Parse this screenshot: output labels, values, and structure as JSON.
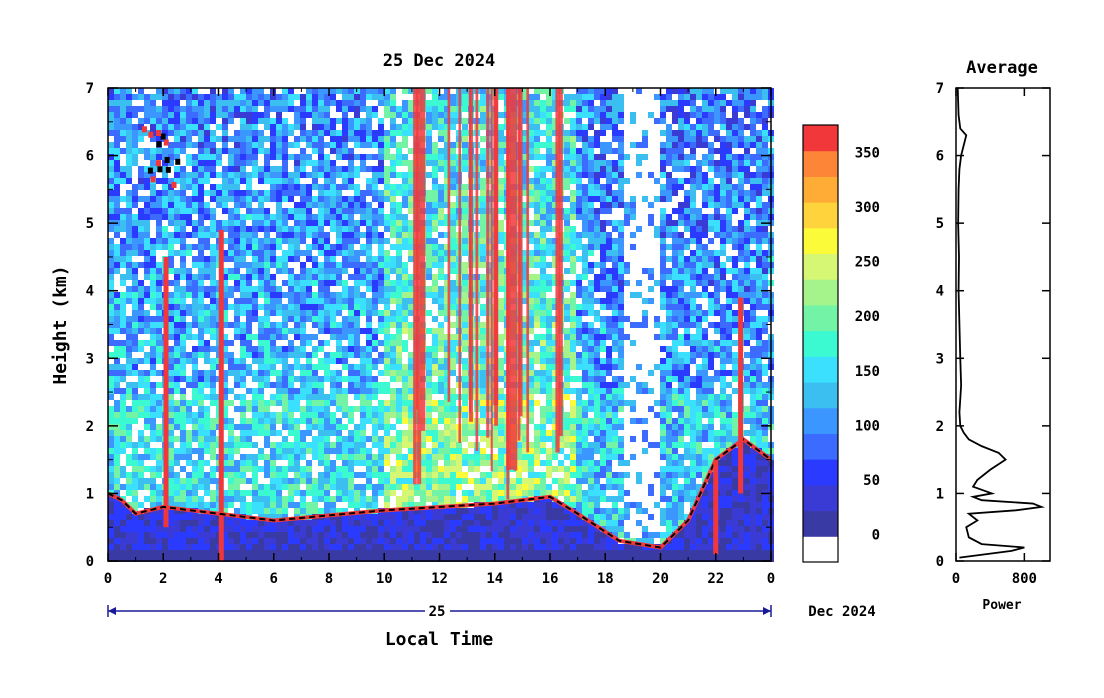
{
  "chart_data": [
    {
      "type": "heatmap",
      "title": "25 Dec 2024",
      "xlabel": "Local Time",
      "ylabel": "Height (km)",
      "x_ticks": [
        "0",
        "2",
        "4",
        "6",
        "8",
        "10",
        "12",
        "14",
        "16",
        "18",
        "20",
        "22",
        "0"
      ],
      "x_range_hours": [
        0,
        24
      ],
      "y_ticks": [
        "0",
        "1",
        "2",
        "3",
        "4",
        "5",
        "6",
        "7"
      ],
      "ylim": [
        0,
        7
      ],
      "date_bar": {
        "day_label": "25",
        "month_label": "Dec 2024"
      },
      "features": [
        {
          "kind": "vertical_streak",
          "x_hour": 2.1,
          "y_range": [
            0.5,
            4.5
          ]
        },
        {
          "kind": "vertical_streak",
          "x_hour": 4.1,
          "y_range": [
            0,
            4.9
          ]
        },
        {
          "kind": "cloud_top",
          "x_hours": [
            1.2,
            2.5
          ],
          "y_range": [
            5.6,
            6.6
          ]
        },
        {
          "kind": "boundary_layer",
          "points": [
            [
              0,
              1.0
            ],
            [
              0.5,
              0.9
            ],
            [
              1,
              0.7
            ],
            [
              2,
              0.8
            ],
            [
              3,
              0.75
            ],
            [
              6,
              0.6
            ],
            [
              10,
              0.75
            ],
            [
              12,
              0.8
            ],
            [
              14,
              0.85
            ],
            [
              16,
              0.95
            ],
            [
              17,
              0.7
            ],
            [
              18.5,
              0.3
            ],
            [
              20,
              0.2
            ],
            [
              21,
              0.6
            ],
            [
              22,
              1.5
            ],
            [
              23,
              1.8
            ],
            [
              24,
              1.5
            ]
          ]
        },
        {
          "kind": "high_intensity_band",
          "x_hours": [
            11,
            16.5
          ],
          "y_range": [
            0.9,
            7
          ]
        },
        {
          "kind": "low_intensity_gap",
          "x_hours": [
            18.6,
            19.9
          ],
          "y_range": [
            0.3,
            7
          ]
        },
        {
          "kind": "vertical_streak",
          "x_hour": 22.0,
          "y_range": [
            0.1,
            1.5
          ]
        },
        {
          "kind": "vertical_streak",
          "x_hour": 22.9,
          "y_range": [
            1.0,
            3.9
          ]
        }
      ]
    },
    {
      "type": "line",
      "title": "Average",
      "xlabel": "Power",
      "x_ticks": [
        "0",
        "800"
      ],
      "xlim": [
        0,
        1100
      ],
      "ylim": [
        0,
        7
      ],
      "y_ticks": [
        "0",
        "1",
        "2",
        "3",
        "4",
        "5",
        "6",
        "7"
      ],
      "points": [
        [
          40,
          0.05
        ],
        [
          650,
          0.15
        ],
        [
          800,
          0.2
        ],
        [
          300,
          0.25
        ],
        [
          150,
          0.35
        ],
        [
          120,
          0.5
        ],
        [
          250,
          0.6
        ],
        [
          150,
          0.7
        ],
        [
          700,
          0.75
        ],
        [
          1000,
          0.8
        ],
        [
          900,
          0.85
        ],
        [
          300,
          0.9
        ],
        [
          200,
          0.95
        ],
        [
          420,
          1.0
        ],
        [
          200,
          1.1
        ],
        [
          250,
          1.2
        ],
        [
          400,
          1.35
        ],
        [
          580,
          1.5
        ],
        [
          500,
          1.6
        ],
        [
          300,
          1.7
        ],
        [
          150,
          1.8
        ],
        [
          90,
          1.9
        ],
        [
          50,
          2.0
        ],
        [
          40,
          2.2
        ],
        [
          60,
          2.6
        ],
        [
          50,
          3.0
        ],
        [
          40,
          3.5
        ],
        [
          30,
          4.0
        ],
        [
          35,
          4.5
        ],
        [
          25,
          5.0
        ],
        [
          30,
          5.5
        ],
        [
          40,
          5.8
        ],
        [
          60,
          6.0
        ],
        [
          120,
          6.3
        ],
        [
          50,
          6.4
        ],
        [
          30,
          6.6
        ],
        [
          20,
          7.0
        ]
      ]
    },
    {
      "type": "colorbar",
      "ticks": [
        "0",
        "50",
        "100",
        "150",
        "200",
        "250",
        "300",
        "350"
      ],
      "tick_values": [
        0,
        50,
        100,
        150,
        200,
        250,
        300,
        350
      ],
      "range": [
        -25,
        375
      ],
      "colors": [
        "#ffffff",
        "#3a3aa4",
        "#3a3ad4",
        "#2a3aff",
        "#3b6bff",
        "#3b97ff",
        "#3bbff0",
        "#3be0ff",
        "#3bf9d1",
        "#72f3a6",
        "#a5f38b",
        "#d6f774",
        "#fbfb39",
        "#ffd33c",
        "#ffac37",
        "#fc8538",
        "#f2373b"
      ]
    }
  ]
}
